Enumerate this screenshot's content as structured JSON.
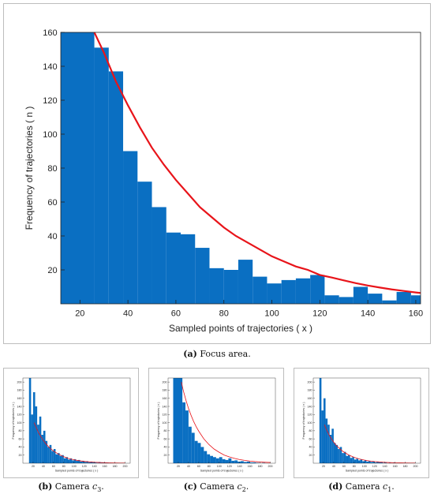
{
  "charts": [
    {
      "type": "bar",
      "xlabel": "Sampled points of trajectories ( x )",
      "ylabel": "Frequency of trajectories ( n )",
      "xlim": [
        12,
        162
      ],
      "ylim": [
        0,
        160
      ],
      "xticks": [
        "20",
        "40",
        "60",
        "80",
        "100",
        "120",
        "140",
        "160"
      ],
      "yticks": [
        "20",
        "40",
        "60",
        "80",
        "100",
        "120",
        "140",
        "160"
      ],
      "bins": [
        {
          "x0": 12,
          "x1": 26,
          "n": 160
        },
        {
          "x0": 26,
          "x1": 32,
          "n": 151
        },
        {
          "x0": 32,
          "x1": 38,
          "n": 137
        },
        {
          "x0": 38,
          "x1": 44,
          "n": 90
        },
        {
          "x0": 44,
          "x1": 50,
          "n": 72
        },
        {
          "x0": 50,
          "x1": 56,
          "n": 57
        },
        {
          "x0": 56,
          "x1": 62,
          "n": 42
        },
        {
          "x0": 62,
          "x1": 68,
          "n": 41
        },
        {
          "x0": 68,
          "x1": 74,
          "n": 33
        },
        {
          "x0": 74,
          "x1": 80,
          "n": 21
        },
        {
          "x0": 80,
          "x1": 86,
          "n": 20
        },
        {
          "x0": 86,
          "x1": 92,
          "n": 26
        },
        {
          "x0": 92,
          "x1": 98,
          "n": 16
        },
        {
          "x0": 98,
          "x1": 104,
          "n": 12
        },
        {
          "x0": 104,
          "x1": 110,
          "n": 14
        },
        {
          "x0": 110,
          "x1": 116,
          "n": 15
        },
        {
          "x0": 116,
          "x1": 122,
          "n": 17
        },
        {
          "x0": 122,
          "x1": 128,
          "n": 5
        },
        {
          "x0": 128,
          "x1": 134,
          "n": 4
        },
        {
          "x0": 134,
          "x1": 140,
          "n": 10
        },
        {
          "x0": 140,
          "x1": 146,
          "n": 6
        },
        {
          "x0": 146,
          "x1": 152,
          "n": 2
        },
        {
          "x0": 152,
          "x1": 158,
          "n": 7
        },
        {
          "x0": 158,
          "x1": 162,
          "n": 5
        }
      ],
      "fit_curve": {
        "color": "#e8141a",
        "points": [
          [
            26,
            160
          ],
          [
            30,
            148
          ],
          [
            35,
            131
          ],
          [
            40,
            117
          ],
          [
            45,
            104
          ],
          [
            50,
            92
          ],
          [
            55,
            82
          ],
          [
            60,
            73
          ],
          [
            65,
            65
          ],
          [
            70,
            57
          ],
          [
            75,
            51
          ],
          [
            80,
            45
          ],
          [
            85,
            40
          ],
          [
            90,
            36
          ],
          [
            95,
            32
          ],
          [
            100,
            28
          ],
          [
            105,
            25
          ],
          [
            110,
            22
          ],
          [
            115,
            20
          ],
          [
            120,
            17
          ],
          [
            125,
            15.5
          ],
          [
            130,
            13.8
          ],
          [
            135,
            12.2
          ],
          [
            140,
            10.8
          ],
          [
            145,
            9.6
          ],
          [
            150,
            8.5
          ],
          [
            155,
            7.6
          ],
          [
            160,
            6.7
          ],
          [
            162,
            6.4
          ]
        ]
      },
      "bar_color": "#0a6fc2",
      "caption_label": "(a)",
      "caption_text": "Focus area."
    },
    {
      "type": "bar",
      "xlabel": "Sampled points of trajectories ( x )",
      "ylabel": "Frequency of trajectories ( n )",
      "xlim": [
        0,
        210
      ],
      "ylim": [
        0,
        210
      ],
      "xticks": [
        "20",
        "40",
        "60",
        "80",
        "100",
        "120",
        "140",
        "160",
        "180",
        "200"
      ],
      "yticks": [
        "20",
        "40",
        "60",
        "80",
        "100",
        "120",
        "140",
        "160",
        "180",
        "200"
      ],
      "bins": [
        {
          "x0": 12,
          "x1": 16,
          "n": 210
        },
        {
          "x0": 16,
          "x1": 20,
          "n": 120
        },
        {
          "x0": 20,
          "x1": 24,
          "n": 175
        },
        {
          "x0": 24,
          "x1": 28,
          "n": 140
        },
        {
          "x0": 28,
          "x1": 32,
          "n": 95
        },
        {
          "x0": 32,
          "x1": 36,
          "n": 115
        },
        {
          "x0": 36,
          "x1": 40,
          "n": 70
        },
        {
          "x0": 40,
          "x1": 44,
          "n": 80
        },
        {
          "x0": 44,
          "x1": 48,
          "n": 55
        },
        {
          "x0": 48,
          "x1": 52,
          "n": 40
        },
        {
          "x0": 52,
          "x1": 56,
          "n": 45
        },
        {
          "x0": 56,
          "x1": 60,
          "n": 30
        },
        {
          "x0": 60,
          "x1": 64,
          "n": 35
        },
        {
          "x0": 64,
          "x1": 68,
          "n": 22
        },
        {
          "x0": 68,
          "x1": 72,
          "n": 25
        },
        {
          "x0": 72,
          "x1": 76,
          "n": 18
        },
        {
          "x0": 76,
          "x1": 80,
          "n": 20
        },
        {
          "x0": 80,
          "x1": 84,
          "n": 12
        },
        {
          "x0": 84,
          "x1": 88,
          "n": 15
        },
        {
          "x0": 88,
          "x1": 92,
          "n": 9
        },
        {
          "x0": 92,
          "x1": 96,
          "n": 12
        },
        {
          "x0": 96,
          "x1": 100,
          "n": 7
        },
        {
          "x0": 100,
          "x1": 104,
          "n": 10
        },
        {
          "x0": 104,
          "x1": 108,
          "n": 6
        },
        {
          "x0": 108,
          "x1": 112,
          "n": 8
        },
        {
          "x0": 112,
          "x1": 116,
          "n": 4
        },
        {
          "x0": 116,
          "x1": 120,
          "n": 6
        },
        {
          "x0": 120,
          "x1": 124,
          "n": 3
        },
        {
          "x0": 124,
          "x1": 128,
          "n": 5
        },
        {
          "x0": 128,
          "x1": 132,
          "n": 2
        },
        {
          "x0": 132,
          "x1": 136,
          "n": 4
        },
        {
          "x0": 136,
          "x1": 140,
          "n": 2
        },
        {
          "x0": 140,
          "x1": 144,
          "n": 3
        },
        {
          "x0": 144,
          "x1": 148,
          "n": 1
        },
        {
          "x0": 148,
          "x1": 152,
          "n": 3
        },
        {
          "x0": 152,
          "x1": 156,
          "n": 1
        },
        {
          "x0": 156,
          "x1": 160,
          "n": 2
        },
        {
          "x0": 160,
          "x1": 164,
          "n": 1
        },
        {
          "x0": 164,
          "x1": 168,
          "n": 1
        },
        {
          "x0": 170,
          "x1": 174,
          "n": 1
        },
        {
          "x0": 180,
          "x1": 184,
          "n": 1
        }
      ],
      "fit_curve": {
        "color": "#e8141a",
        "points": [
          [
            22,
            100
          ],
          [
            26,
            88
          ],
          [
            30,
            77
          ],
          [
            35,
            66
          ],
          [
            40,
            56
          ],
          [
            45,
            48
          ],
          [
            50,
            41
          ],
          [
            55,
            35
          ],
          [
            60,
            30
          ],
          [
            70,
            22
          ],
          [
            80,
            16
          ],
          [
            90,
            11.5
          ],
          [
            100,
            8.5
          ],
          [
            110,
            6.2
          ],
          [
            120,
            4.5
          ],
          [
            130,
            3.3
          ],
          [
            140,
            2.4
          ],
          [
            150,
            1.8
          ],
          [
            160,
            1.3
          ],
          [
            170,
            1
          ],
          [
            180,
            0.7
          ],
          [
            190,
            0.5
          ],
          [
            200,
            0.4
          ]
        ]
      },
      "bar_color": "#0a6fc2",
      "caption_label": "(b)",
      "caption_text": "Camera",
      "caption_var": "c",
      "caption_sub": "3"
    },
    {
      "type": "bar",
      "xlabel": "Sampled points of trajectories ( x )",
      "ylabel": "Frequency of trajectories ( n )",
      "xlim": [
        0,
        210
      ],
      "ylim": [
        0,
        210
      ],
      "xticks": [
        "20",
        "40",
        "60",
        "80",
        "100",
        "120",
        "140",
        "160",
        "180",
        "200"
      ],
      "yticks": [
        "20",
        "40",
        "60",
        "80",
        "100",
        "120",
        "140",
        "160",
        "180",
        "200"
      ],
      "bins": [
        {
          "x0": 10,
          "x1": 28,
          "n": 210
        },
        {
          "x0": 28,
          "x1": 34,
          "n": 150
        },
        {
          "x0": 34,
          "x1": 40,
          "n": 130
        },
        {
          "x0": 40,
          "x1": 46,
          "n": 90
        },
        {
          "x0": 46,
          "x1": 52,
          "n": 75
        },
        {
          "x0": 52,
          "x1": 58,
          "n": 55
        },
        {
          "x0": 58,
          "x1": 64,
          "n": 50
        },
        {
          "x0": 64,
          "x1": 70,
          "n": 40
        },
        {
          "x0": 70,
          "x1": 76,
          "n": 30
        },
        {
          "x0": 76,
          "x1": 82,
          "n": 22
        },
        {
          "x0": 82,
          "x1": 88,
          "n": 18
        },
        {
          "x0": 88,
          "x1": 94,
          "n": 15
        },
        {
          "x0": 94,
          "x1": 100,
          "n": 12
        },
        {
          "x0": 100,
          "x1": 106,
          "n": 15
        },
        {
          "x0": 106,
          "x1": 112,
          "n": 10
        },
        {
          "x0": 112,
          "x1": 118,
          "n": 8
        },
        {
          "x0": 118,
          "x1": 124,
          "n": 12
        },
        {
          "x0": 124,
          "x1": 130,
          "n": 6
        },
        {
          "x0": 130,
          "x1": 136,
          "n": 7
        },
        {
          "x0": 136,
          "x1": 142,
          "n": 4
        },
        {
          "x0": 142,
          "x1": 148,
          "n": 5
        },
        {
          "x0": 148,
          "x1": 154,
          "n": 3
        },
        {
          "x0": 154,
          "x1": 160,
          "n": 4
        },
        {
          "x0": 160,
          "x1": 166,
          "n": 2
        },
        {
          "x0": 166,
          "x1": 172,
          "n": 2
        },
        {
          "x0": 172,
          "x1": 178,
          "n": 1
        },
        {
          "x0": 184,
          "x1": 190,
          "n": 1
        }
      ],
      "fit_curve": {
        "color": "#e8141a",
        "points": [
          [
            26,
            200
          ],
          [
            30,
            178
          ],
          [
            35,
            155
          ],
          [
            40,
            135
          ],
          [
            45,
            118
          ],
          [
            50,
            103
          ],
          [
            55,
            90
          ],
          [
            60,
            79
          ],
          [
            70,
            60
          ],
          [
            80,
            46
          ],
          [
            90,
            35
          ],
          [
            100,
            27
          ],
          [
            110,
            20
          ],
          [
            120,
            15.5
          ],
          [
            130,
            12
          ],
          [
            140,
            9
          ],
          [
            150,
            7
          ],
          [
            160,
            5.3
          ],
          [
            170,
            4
          ],
          [
            180,
            3
          ],
          [
            190,
            2.3
          ],
          [
            200,
            1.8
          ]
        ]
      },
      "bar_color": "#0a6fc2",
      "caption_label": "(c)",
      "caption_text": "Camera",
      "caption_var": "c",
      "caption_sub": "2"
    },
    {
      "type": "bar",
      "xlabel": "Sampled points of trajectories ( x )",
      "ylabel": "Frequency of trajectories ( n )",
      "xlim": [
        0,
        210
      ],
      "ylim": [
        0,
        210
      ],
      "xticks": [
        "20",
        "40",
        "60",
        "80",
        "100",
        "120",
        "140",
        "160",
        "180",
        "200"
      ],
      "yticks": [
        "20",
        "40",
        "60",
        "80",
        "100",
        "120",
        "140",
        "160",
        "180",
        "200"
      ],
      "bins": [
        {
          "x0": 12,
          "x1": 16,
          "n": 210
        },
        {
          "x0": 16,
          "x1": 20,
          "n": 130
        },
        {
          "x0": 20,
          "x1": 24,
          "n": 160
        },
        {
          "x0": 24,
          "x1": 28,
          "n": 110
        },
        {
          "x0": 28,
          "x1": 32,
          "n": 95
        },
        {
          "x0": 32,
          "x1": 36,
          "n": 70
        },
        {
          "x0": 36,
          "x1": 40,
          "n": 85
        },
        {
          "x0": 40,
          "x1": 44,
          "n": 50
        },
        {
          "x0": 44,
          "x1": 48,
          "n": 45
        },
        {
          "x0": 48,
          "x1": 52,
          "n": 35
        },
        {
          "x0": 52,
          "x1": 56,
          "n": 40
        },
        {
          "x0": 56,
          "x1": 60,
          "n": 25
        },
        {
          "x0": 60,
          "x1": 64,
          "n": 28
        },
        {
          "x0": 64,
          "x1": 68,
          "n": 18
        },
        {
          "x0": 68,
          "x1": 72,
          "n": 20
        },
        {
          "x0": 72,
          "x1": 76,
          "n": 13
        },
        {
          "x0": 76,
          "x1": 80,
          "n": 15
        },
        {
          "x0": 80,
          "x1": 84,
          "n": 9
        },
        {
          "x0": 84,
          "x1": 88,
          "n": 11
        },
        {
          "x0": 88,
          "x1": 92,
          "n": 7
        },
        {
          "x0": 92,
          "x1": 96,
          "n": 9
        },
        {
          "x0": 96,
          "x1": 100,
          "n": 5
        },
        {
          "x0": 100,
          "x1": 104,
          "n": 7
        },
        {
          "x0": 104,
          "x1": 108,
          "n": 4
        },
        {
          "x0": 108,
          "x1": 112,
          "n": 5
        },
        {
          "x0": 112,
          "x1": 116,
          "n": 3
        },
        {
          "x0": 116,
          "x1": 120,
          "n": 4
        },
        {
          "x0": 120,
          "x1": 124,
          "n": 2
        },
        {
          "x0": 124,
          "x1": 128,
          "n": 3
        },
        {
          "x0": 128,
          "x1": 132,
          "n": 2
        },
        {
          "x0": 132,
          "x1": 136,
          "n": 2
        },
        {
          "x0": 136,
          "x1": 140,
          "n": 1
        },
        {
          "x0": 140,
          "x1": 144,
          "n": 2
        },
        {
          "x0": 148,
          "x1": 152,
          "n": 1
        },
        {
          "x0": 156,
          "x1": 160,
          "n": 1
        },
        {
          "x0": 170,
          "x1": 174,
          "n": 1
        }
      ],
      "fit_curve": {
        "color": "#e8141a",
        "points": [
          [
            22,
            95
          ],
          [
            26,
            82
          ],
          [
            30,
            72
          ],
          [
            35,
            61
          ],
          [
            40,
            52
          ],
          [
            45,
            44
          ],
          [
            50,
            38
          ],
          [
            55,
            32
          ],
          [
            60,
            27.5
          ],
          [
            70,
            20
          ],
          [
            80,
            14.5
          ],
          [
            90,
            10.5
          ],
          [
            100,
            7.7
          ],
          [
            110,
            5.6
          ],
          [
            120,
            4.1
          ],
          [
            130,
            3
          ],
          [
            140,
            2.2
          ],
          [
            150,
            1.6
          ],
          [
            160,
            1.2
          ],
          [
            170,
            0.9
          ],
          [
            180,
            0.6
          ],
          [
            190,
            0.45
          ],
          [
            200,
            0.35
          ]
        ]
      },
      "bar_color": "#0a6fc2",
      "caption_label": "(d)",
      "caption_text": "Camera",
      "caption_var": "c",
      "caption_sub": "1"
    }
  ]
}
